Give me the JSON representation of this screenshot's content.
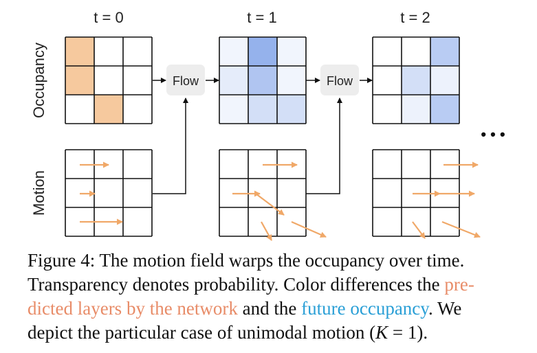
{
  "figure": {
    "time_labels": [
      "t = 0",
      "t = 1",
      "t = 2"
    ],
    "row_labels": {
      "occupancy": "Occupancy",
      "motion": "Motion"
    },
    "flow_label": "Flow",
    "ellipsis": "• • •",
    "colors": {
      "occupancy_t0": "#f6c99e",
      "occupancy_future": "#4f7fe0",
      "motion_arrow": "#f0a868",
      "flow_box": "#ededed"
    },
    "occupancy_t0": [
      [
        1,
        0,
        0
      ],
      [
        1,
        0,
        0
      ],
      [
        0,
        1,
        0
      ]
    ],
    "occupancy_t1": [
      [
        0.08,
        0.6,
        0.08
      ],
      [
        0.15,
        0.45,
        0.08
      ],
      [
        0.08,
        0.25,
        0.25
      ]
    ],
    "occupancy_t2": [
      [
        0,
        0,
        0.4
      ],
      [
        0,
        0.25,
        0.1
      ],
      [
        0,
        0.1,
        0.4
      ]
    ]
  },
  "caption": {
    "line1": "Figure 4: The motion field warps the occupancy over time.",
    "line2_a": "Transparency denotes probability. Color differences the ",
    "line2_pred": "pre-",
    "line3_pred": "dicted layers by the network",
    "line3_b": " and the ",
    "line3_future": "future occupancy",
    "line3_c": ". We",
    "line4_a": "depict the particular case of unimodal motion (",
    "line4_math": "K",
    "line4_eq": " = 1",
    "line4_b": ")."
  }
}
